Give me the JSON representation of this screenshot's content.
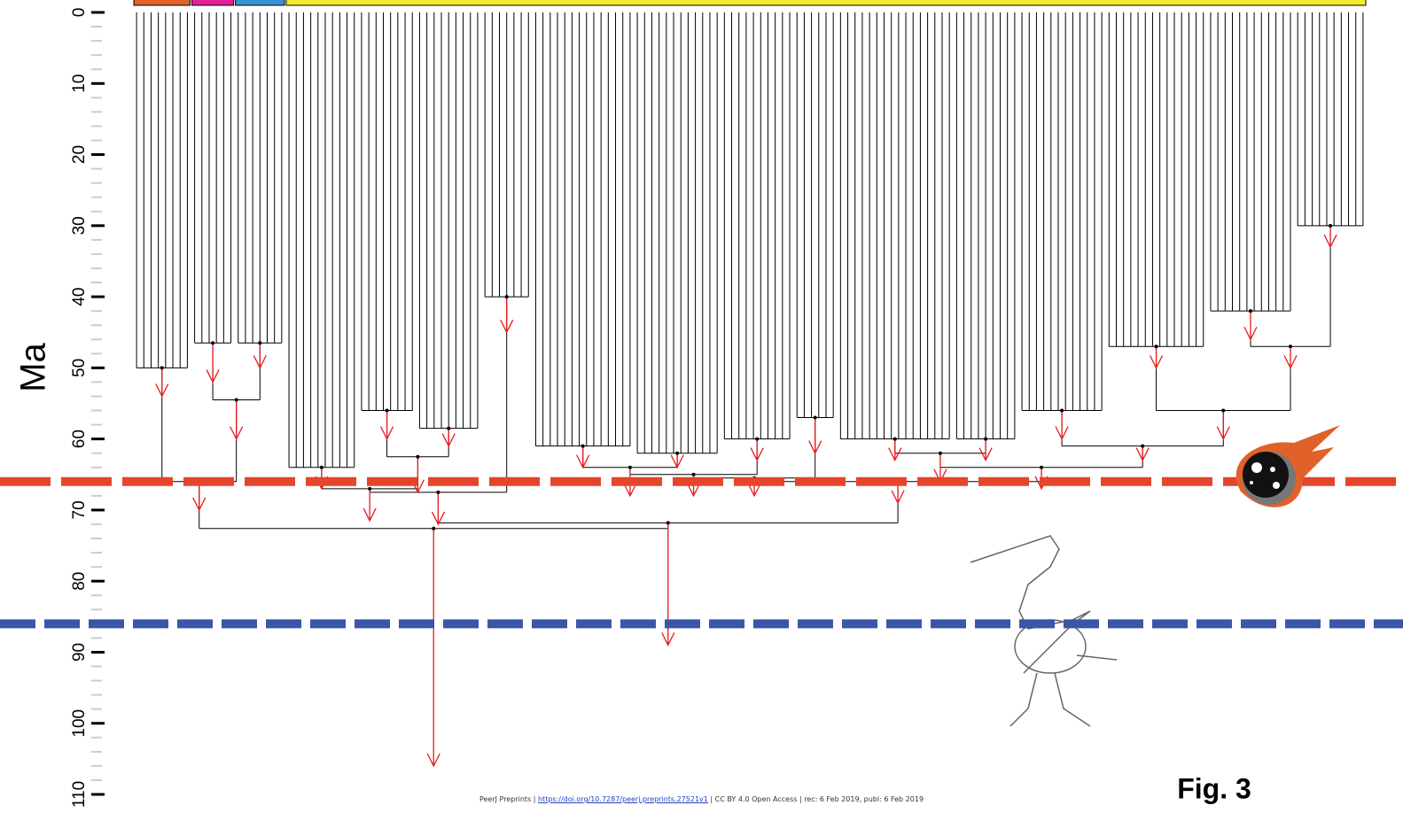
{
  "chart_data": {
    "type": "tree",
    "y_label": "Ma",
    "ylim": [
      0,
      110
    ],
    "yticks": [
      0,
      10,
      20,
      30,
      40,
      50,
      60,
      70,
      80,
      90,
      100,
      110
    ],
    "reference_lines": [
      {
        "value": 66,
        "color": "#e5452a"
      },
      {
        "value": 86,
        "color": "#3a56a8"
      }
    ],
    "arrow_color": "#e8191c",
    "clades": [
      {
        "tips": 8,
        "crown": 50,
        "arrow": 54
      },
      {
        "tips": 6,
        "crown": 46.5,
        "arrow": 52
      },
      {
        "tips": 7,
        "crown": 46.5,
        "arrow": 50
      },
      {
        "tips": 10,
        "crown": 64,
        "arrow": 67
      },
      {
        "tips": 8,
        "crown": 56,
        "arrow": 60
      },
      {
        "tips": 9,
        "crown": 58.5,
        "arrow": 61
      },
      {
        "tips": 7,
        "crown": 40,
        "arrow": 45
      },
      {
        "tips": 14,
        "crown": 61,
        "arrow": 64
      },
      {
        "tips": 12,
        "crown": 62,
        "arrow": 64
      },
      {
        "tips": 10,
        "crown": 60,
        "arrow": 63
      },
      {
        "tips": 6,
        "crown": 57,
        "arrow": 62
      },
      {
        "tips": 16,
        "crown": 60,
        "arrow": 63
      },
      {
        "tips": 9,
        "crown": 60,
        "arrow": 63
      },
      {
        "tips": 12,
        "crown": 56,
        "arrow": 60
      },
      {
        "tips": 14,
        "crown": 47,
        "arrow": 50
      },
      {
        "tips": 12,
        "crown": 42,
        "arrow": 46
      },
      {
        "tips": 10,
        "crown": 30,
        "arrow": 33
      }
    ],
    "backbone": [
      {
        "span": [
          1,
          2
        ],
        "age": 54.5,
        "arrow": 60
      },
      {
        "span": [
          0,
          2
        ],
        "age": 66,
        "arrow": 70
      },
      {
        "span": [
          4,
          5
        ],
        "age": 62.5,
        "arrow": 67.5
      },
      {
        "span": [
          3,
          5
        ],
        "age": 67,
        "arrow": 71.5
      },
      {
        "span": [
          3,
          6
        ],
        "age": 67.5,
        "arrow": 72
      },
      {
        "span": [
          7,
          8
        ],
        "age": 64,
        "arrow": 68
      },
      {
        "span": [
          7,
          9
        ],
        "age": 65,
        "arrow": 68
      },
      {
        "span": [
          7,
          10
        ],
        "age": 65.5,
        "arrow": 68
      },
      {
        "span": [
          11,
          12
        ],
        "age": 62,
        "arrow": 66
      },
      {
        "span": [
          15,
          16
        ],
        "age": 47,
        "arrow": 50
      },
      {
        "span": [
          14,
          16
        ],
        "age": 56,
        "arrow": 60
      },
      {
        "span": [
          13,
          16
        ],
        "age": 61,
        "arrow": 63
      },
      {
        "span": [
          11,
          16
        ],
        "age": 64,
        "arrow": 67
      },
      {
        "span": [
          7,
          16
        ],
        "age": 66,
        "arrow": 69
      },
      {
        "span": [
          3,
          16
        ],
        "age": 71.8,
        "arrow": 89
      },
      {
        "span": [
          0,
          16
        ],
        "age": 72.6,
        "arrow": 106
      }
    ],
    "groups": [
      {
        "span": [
          0,
          0
        ],
        "color": "#e0622a"
      },
      {
        "span": [
          1,
          1
        ],
        "color": "#e3239a"
      },
      {
        "span": [
          2,
          2
        ],
        "color": "#3a8fd0"
      },
      {
        "span": [
          3,
          16
        ],
        "color": "#f2ec2b"
      }
    ],
    "figure_label": "Fig. 3"
  },
  "footer": {
    "prefix": "PeerJ Preprints | ",
    "link": "https://doi.org/10.7287/peerj.preprints.27521v1",
    "suffix": " | CC BY 4.0 Open Access | rec: 6 Feb 2019, publ: 6 Feb 2019"
  }
}
